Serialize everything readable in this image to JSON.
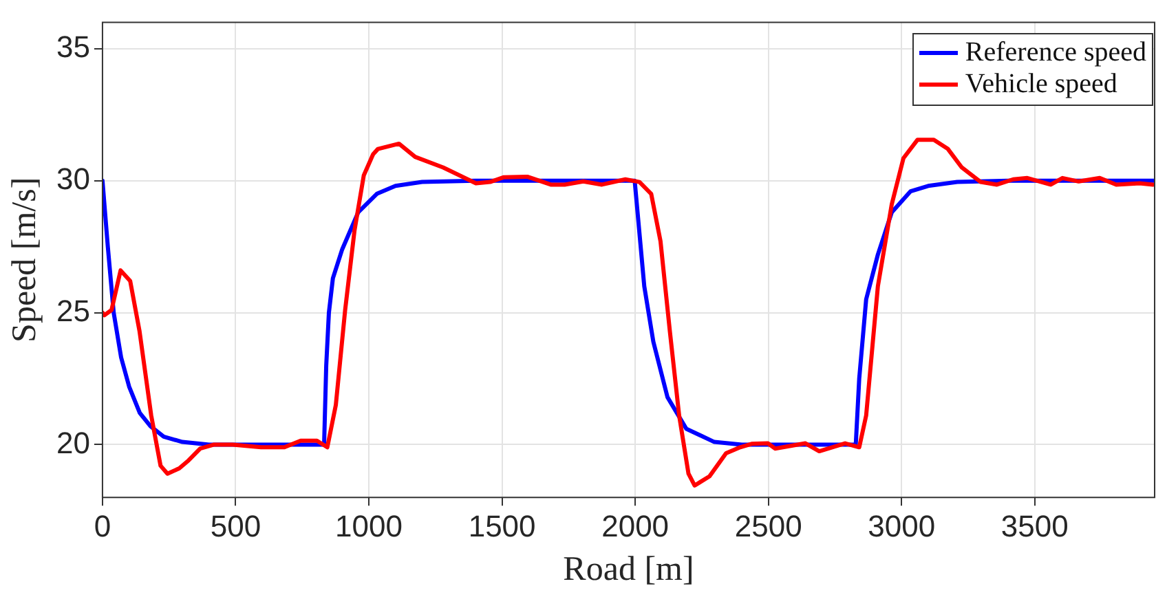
{
  "chart_data": {
    "type": "line",
    "xlabel": "Road [m]",
    "ylabel": "Speed [m/s]",
    "xlim": [
      0,
      3950
    ],
    "xticks": [
      0,
      500,
      1000,
      1500,
      2000,
      2500,
      3000,
      3500
    ],
    "ylim": [
      18,
      36
    ],
    "yticks": [
      20,
      25,
      30,
      35
    ],
    "grid": true,
    "legend": "top right",
    "marker": "none",
    "line_style": "solid",
    "series": [
      {
        "name": "Reference speed",
        "color": "#0000ff",
        "x": [
          0,
          20,
          42,
          70,
          100,
          140,
          180,
          230,
          300,
          400,
          832,
          840,
          850,
          865,
          900,
          960,
          1030,
          1100,
          1200,
          1400,
          1998,
          2034,
          2068,
          2121,
          2192,
          2297,
          2400,
          2828,
          2841,
          2867,
          2911,
          2963,
          3034,
          3100,
          3209,
          3400,
          3950
        ],
        "values": [
          30,
          27.5,
          25,
          23.3,
          22.2,
          21.2,
          20.7,
          20.3,
          20.1,
          20,
          20,
          23,
          25,
          26.3,
          27.4,
          28.8,
          29.5,
          29.8,
          29.95,
          30,
          30,
          26,
          23.9,
          21.8,
          20.6,
          20.1,
          20,
          20,
          22.5,
          25.5,
          27.2,
          28.8,
          29.6,
          29.8,
          29.95,
          30,
          30
        ]
      },
      {
        "name": "Vehicle speed",
        "color": "#ff0000",
        "x": [
          0,
          7,
          34,
          68,
          104,
          139,
          183,
          218,
          244,
          288,
          323,
          367,
          419,
          489,
          595,
          683,
          744,
          805,
          844,
          876,
          911,
          946,
          981,
          1016,
          1034,
          1113,
          1174,
          1279,
          1402,
          1455,
          1507,
          1595,
          1683,
          1735,
          1805,
          1875,
          1963,
          2016,
          2060,
          2095,
          2130,
          2165,
          2200,
          2223,
          2279,
          2341,
          2394,
          2437,
          2498,
          2525,
          2639,
          2691,
          2788,
          2841,
          2867,
          2911,
          2963,
          3007,
          3060,
          3121,
          3174,
          3226,
          3297,
          3358,
          3419,
          3472,
          3560,
          3604,
          3665,
          3744,
          3806,
          3894,
          3944
        ],
        "values": [
          25,
          24.9,
          25.1,
          26.6,
          26.2,
          24.3,
          21.1,
          19.2,
          18.9,
          19.1,
          19.4,
          19.85,
          20,
          20,
          19.9,
          19.9,
          20.15,
          20.15,
          19.9,
          21.5,
          25.1,
          28.1,
          30.2,
          31,
          31.2,
          31.4,
          30.9,
          30.5,
          29.9,
          29.95,
          30.13,
          30.15,
          29.85,
          29.85,
          29.97,
          29.85,
          30.05,
          29.95,
          29.5,
          27.7,
          24.3,
          21.1,
          18.9,
          18.45,
          18.8,
          19.67,
          19.9,
          20.03,
          20.05,
          19.85,
          20.05,
          19.75,
          20.05,
          19.9,
          21.1,
          26,
          29.1,
          30.85,
          31.55,
          31.55,
          31.2,
          30.5,
          29.95,
          29.85,
          30.05,
          30.1,
          29.85,
          30.1,
          29.97,
          30.1,
          29.85,
          29.9,
          29.85
        ]
      }
    ]
  }
}
